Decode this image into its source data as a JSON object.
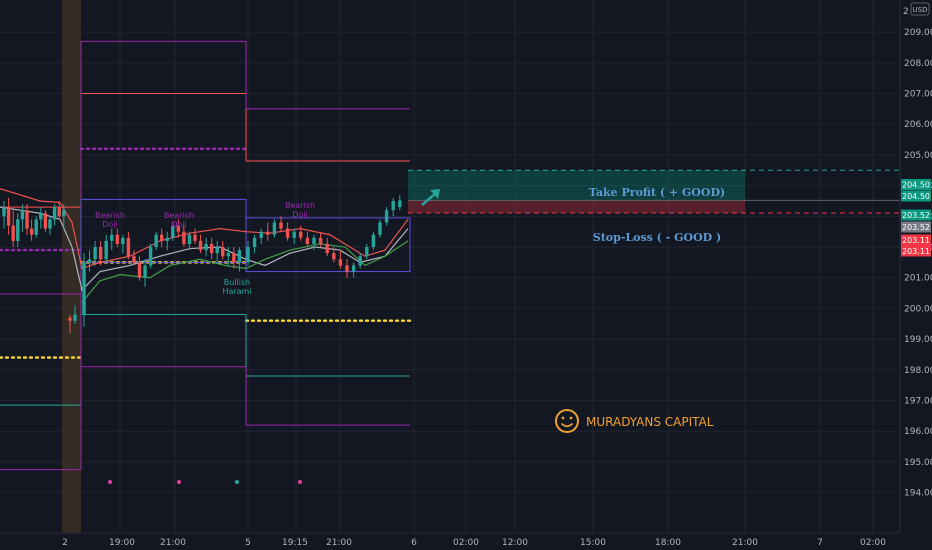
{
  "chart_data": {
    "type": "candlestick",
    "currency": "USD",
    "axis_top_label": "2",
    "ylim": [
      193.6,
      210.1
    ],
    "y_ticks": [
      194.0,
      195.0,
      196.0,
      197.0,
      198.0,
      199.0,
      200.0,
      201.0,
      202.0,
      203.0,
      204.0,
      205.0,
      206.0,
      207.0,
      208.0,
      209.0
    ],
    "x_ticks": [
      "2",
      "19:00",
      "21:00",
      "5",
      "19:15",
      "21:00",
      "6",
      "02:00",
      "12:00",
      "15:00",
      "18:00",
      "21:00",
      "7",
      "02:00"
    ],
    "price_tags": [
      {
        "value": "204.50",
        "color": "#089981"
      },
      {
        "value": "204.50",
        "color": "#089981"
      },
      {
        "value": "203.52",
        "color": "#089981"
      },
      {
        "value": "203.52",
        "color": "#787b86"
      },
      {
        "value": "203.11",
        "color": "#f23645"
      },
      {
        "value": "203.11",
        "color": "#f23645"
      }
    ],
    "take_profit": {
      "price": 204.5,
      "label": "Take Profit ( + GOOD)"
    },
    "stop_loss": {
      "price": 203.11,
      "label": "Stop-Loss ( - GOOD )"
    },
    "entry_price": 203.52,
    "annotations": [
      {
        "label": "Bearish\nDoji",
        "color": "#9c27b0"
      },
      {
        "label": "Bearish\nDoji",
        "color": "#9c27b0"
      },
      {
        "label": "Bearish\nDoji",
        "color": "#9c27b0"
      },
      {
        "label": "Bullish\nHarami",
        "color": "#26a69a"
      }
    ],
    "levels": [
      {
        "price": 203.3,
        "color": "#ff5252",
        "style": "solid"
      },
      {
        "price": 201.9,
        "color": "#9c27b0",
        "style": "dotted"
      },
      {
        "price": 200.47,
        "color": "#9c27b0",
        "style": "solid"
      },
      {
        "price": 196.85,
        "color": "#26a69a",
        "style": "solid"
      },
      {
        "price": 194.75,
        "color": "#9c27b0",
        "style": "solid"
      },
      {
        "price": 198.4,
        "color": "#fdd835",
        "style": "dotted"
      },
      {
        "price": 208.7,
        "color": "#9c27b0",
        "style": "solid"
      },
      {
        "price": 207.0,
        "color": "#ff5252",
        "style": "solid"
      },
      {
        "price": 205.2,
        "color": "#9c27b0",
        "style": "dotted"
      },
      {
        "price": 201.5,
        "color": "#fdd835",
        "style": "dotted"
      },
      {
        "price": 199.8,
        "color": "#26a69a",
        "style": "solid"
      },
      {
        "price": 198.1,
        "color": "#9c27b0",
        "style": "solid"
      },
      {
        "price": 206.5,
        "color": "#9c27b0",
        "style": "solid"
      },
      {
        "price": 204.8,
        "color": "#ff5252",
        "style": "solid"
      },
      {
        "price": 199.6,
        "color": "#fdd835",
        "style": "dotted"
      },
      {
        "price": 197.8,
        "color": "#26a69a",
        "style": "solid"
      },
      {
        "price": 196.2,
        "color": "#9c27b0",
        "style": "solid"
      }
    ],
    "candles": [
      [
        203.0,
        203.5,
        202.6,
        203.3
      ],
      [
        203.3,
        203.6,
        202.4,
        202.7
      ],
      [
        202.7,
        203.2,
        202.0,
        202.2
      ],
      [
        202.2,
        203.1,
        202.0,
        202.9
      ],
      [
        202.9,
        203.4,
        202.5,
        203.2
      ],
      [
        203.2,
        203.4,
        202.4,
        202.6
      ],
      [
        202.6,
        202.9,
        202.2,
        202.4
      ],
      [
        202.4,
        203.0,
        202.3,
        202.9
      ],
      [
        202.9,
        203.3,
        202.6,
        203.1
      ],
      [
        203.1,
        203.2,
        202.5,
        202.6
      ],
      [
        202.6,
        203.0,
        202.4,
        202.9
      ],
      [
        202.9,
        203.4,
        202.7,
        203.3
      ],
      [
        203.3,
        203.5,
        202.9,
        203.0
      ],
      [
        203.0,
        203.4,
        202.6,
        203.2
      ],
      [
        199.7,
        199.8,
        199.2,
        199.6
      ],
      [
        199.6,
        200.1,
        199.5,
        199.8
      ],
      [
        199.8,
        201.8,
        199.4,
        201.5
      ],
      [
        201.5,
        201.9,
        201.2,
        201.6
      ],
      [
        201.6,
        202.2,
        201.4,
        202.0
      ],
      [
        202.0,
        202.2,
        201.4,
        201.6
      ],
      [
        201.6,
        202.4,
        201.5,
        202.2
      ],
      [
        202.2,
        202.6,
        201.9,
        202.4
      ],
      [
        202.4,
        202.6,
        202.0,
        202.1
      ],
      [
        202.1,
        202.4,
        201.8,
        202.3
      ],
      [
        202.3,
        202.5,
        201.6,
        201.7
      ],
      [
        201.7,
        201.9,
        201.4,
        201.5
      ],
      [
        201.5,
        201.7,
        200.9,
        201.0
      ],
      [
        201.0,
        201.6,
        200.7,
        201.4
      ],
      [
        201.4,
        202.1,
        201.3,
        202.0
      ],
      [
        202.0,
        202.5,
        201.9,
        202.4
      ],
      [
        202.4,
        202.6,
        202.0,
        202.2
      ],
      [
        202.2,
        202.5,
        201.9,
        202.3
      ],
      [
        202.3,
        202.8,
        202.2,
        202.7
      ],
      [
        202.7,
        202.9,
        202.3,
        202.5
      ],
      [
        202.5,
        202.7,
        202.0,
        202.1
      ],
      [
        202.1,
        202.5,
        201.9,
        202.4
      ],
      [
        202.4,
        202.6,
        202.1,
        202.2
      ],
      [
        202.2,
        202.4,
        201.8,
        201.9
      ],
      [
        201.9,
        202.3,
        201.7,
        202.1
      ],
      [
        202.1,
        202.3,
        201.6,
        201.8
      ],
      [
        201.8,
        202.2,
        201.5,
        202.0
      ],
      [
        202.0,
        202.2,
        201.6,
        201.7
      ],
      [
        201.7,
        202.0,
        201.4,
        201.8
      ],
      [
        201.8,
        202.0,
        201.3,
        201.5
      ],
      [
        201.5,
        202.0,
        201.2,
        201.9
      ],
      [
        201.5,
        202.2,
        201.4,
        202.0
      ],
      [
        202.0,
        202.4,
        201.8,
        202.3
      ],
      [
        202.3,
        202.6,
        202.1,
        202.5
      ],
      [
        202.5,
        202.8,
        202.2,
        202.4
      ],
      [
        202.4,
        202.9,
        202.3,
        202.8
      ],
      [
        202.8,
        203.0,
        202.5,
        202.6
      ],
      [
        202.6,
        202.8,
        202.2,
        202.3
      ],
      [
        202.3,
        202.6,
        202.1,
        202.5
      ],
      [
        202.5,
        202.7,
        202.2,
        202.3
      ],
      [
        202.3,
        202.5,
        202.0,
        202.1
      ],
      [
        202.1,
        202.4,
        201.9,
        202.3
      ],
      [
        202.3,
        202.5,
        202.0,
        202.1
      ],
      [
        202.1,
        202.3,
        201.7,
        201.8
      ],
      [
        201.8,
        202.0,
        201.5,
        201.6
      ],
      [
        201.6,
        201.9,
        201.3,
        201.4
      ],
      [
        201.4,
        201.6,
        201.0,
        201.2
      ],
      [
        201.2,
        201.5,
        201.0,
        201.4
      ],
      [
        201.4,
        201.8,
        201.3,
        201.7
      ],
      [
        201.7,
        202.1,
        201.6,
        202.0
      ],
      [
        202.0,
        202.5,
        201.9,
        202.4
      ],
      [
        202.4,
        202.9,
        202.3,
        202.8
      ],
      [
        202.8,
        203.3,
        202.7,
        203.2
      ],
      [
        203.2,
        203.6,
        203.0,
        203.5
      ],
      [
        203.3,
        203.7,
        203.2,
        203.52
      ]
    ],
    "watermark": "MURADYANS CAPITAL"
  }
}
